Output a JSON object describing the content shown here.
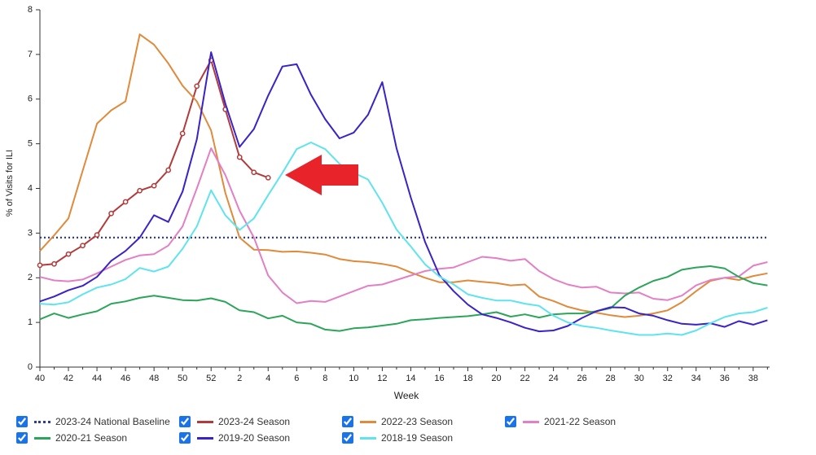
{
  "chart_data": {
    "type": "line",
    "ylabel": "% of Visits for ILI",
    "xlabel": "Week",
    "categories": [
      "40",
      null,
      "42",
      null,
      "44",
      null,
      "46",
      null,
      "48",
      null,
      "50",
      null,
      "52",
      null,
      "2",
      null,
      "4",
      null,
      "6",
      null,
      "8",
      null,
      "10",
      null,
      "12",
      null,
      "14",
      null,
      "16",
      null,
      "18",
      null,
      "20",
      null,
      "22",
      null,
      "24",
      null,
      "26",
      null,
      "28",
      null,
      "30",
      null,
      "32",
      null,
      "34",
      null,
      "36",
      null,
      "38",
      null
    ],
    "ylim": [
      0,
      8
    ],
    "yticks": [
      0,
      1,
      2,
      3,
      4,
      5,
      6,
      7,
      8
    ],
    "series": [
      {
        "name": "2023-24 National Baseline",
        "color": "#2f3f8c",
        "dashed": true,
        "values": [
          2.9,
          2.9,
          2.9,
          2.9,
          2.9,
          2.9,
          2.9,
          2.9,
          2.9,
          2.9,
          2.9,
          2.9,
          2.9,
          2.9,
          2.9,
          2.9,
          2.9,
          2.9,
          2.9,
          2.9,
          2.9,
          2.9,
          2.9,
          2.9,
          2.9,
          2.9,
          2.9,
          2.9,
          2.9,
          2.9,
          2.9,
          2.9,
          2.9,
          2.9,
          2.9,
          2.9,
          2.9,
          2.9,
          2.9,
          2.9,
          2.9,
          2.9,
          2.9,
          2.9,
          2.9,
          2.9,
          2.9,
          2.9,
          2.9,
          2.9,
          2.9,
          2.9
        ]
      },
      {
        "name": "2023-24 Season",
        "color": "#b23a3a",
        "markers": true,
        "values": [
          2.28,
          2.31,
          2.53,
          2.72,
          2.96,
          3.44,
          3.7,
          3.95,
          4.06,
          4.41,
          5.23,
          6.29,
          6.87,
          5.77,
          4.7,
          4.36,
          4.24,
          null,
          null,
          null,
          null,
          null,
          null,
          null,
          null,
          null,
          null,
          null,
          null,
          null,
          null,
          null,
          null,
          null,
          null,
          null,
          null,
          null,
          null,
          null,
          null,
          null,
          null,
          null,
          null,
          null,
          null,
          null,
          null,
          null,
          null,
          null
        ]
      },
      {
        "name": "2022-23 Season",
        "color": "#e08a3c",
        "values": [
          2.6,
          2.95,
          3.33,
          4.4,
          5.45,
          5.75,
          5.95,
          7.45,
          7.22,
          6.8,
          6.3,
          5.95,
          5.3,
          3.9,
          2.9,
          2.63,
          2.62,
          2.58,
          2.59,
          2.56,
          2.52,
          2.42,
          2.37,
          2.35,
          2.31,
          2.25,
          2.12,
          2.0,
          1.9,
          1.9,
          1.94,
          1.91,
          1.88,
          1.83,
          1.85,
          1.58,
          1.48,
          1.35,
          1.27,
          1.22,
          1.16,
          1.12,
          1.15,
          1.2,
          1.27,
          1.45,
          1.7,
          1.93,
          2.0,
          1.95,
          2.04,
          2.1
        ]
      },
      {
        "name": "2021-22 Season",
        "color": "#e37fc4",
        "values": [
          2.02,
          1.94,
          1.92,
          1.96,
          2.1,
          2.25,
          2.4,
          2.5,
          2.53,
          2.72,
          3.15,
          4.0,
          4.9,
          4.3,
          3.5,
          2.9,
          2.05,
          1.67,
          1.43,
          1.48,
          1.46,
          1.58,
          1.7,
          1.82,
          1.85,
          1.95,
          2.05,
          2.15,
          2.2,
          2.23,
          2.35,
          2.47,
          2.44,
          2.38,
          2.42,
          2.15,
          1.97,
          1.85,
          1.78,
          1.8,
          1.67,
          1.65,
          1.67,
          1.53,
          1.5,
          1.6,
          1.83,
          1.95,
          2.0,
          2.03,
          2.27,
          2.35
        ]
      },
      {
        "name": "2020-21 Season",
        "color": "#2ca55a",
        "values": [
          1.07,
          1.2,
          1.1,
          1.18,
          1.25,
          1.42,
          1.47,
          1.55,
          1.6,
          1.55,
          1.5,
          1.49,
          1.54,
          1.46,
          1.27,
          1.23,
          1.09,
          1.15,
          1.0,
          0.97,
          0.84,
          0.81,
          0.87,
          0.89,
          0.93,
          0.97,
          1.05,
          1.07,
          1.1,
          1.12,
          1.14,
          1.18,
          1.23,
          1.13,
          1.18,
          1.11,
          1.18,
          1.2,
          1.2,
          1.25,
          1.32,
          1.6,
          1.78,
          1.93,
          2.02,
          2.18,
          2.23,
          2.26,
          2.21,
          2.02,
          1.88,
          1.83
        ]
      },
      {
        "name": "2019-20 Season",
        "color": "#3a22c9",
        "values": [
          1.47,
          1.58,
          1.72,
          1.82,
          2.02,
          2.38,
          2.6,
          2.9,
          3.4,
          3.25,
          3.93,
          5.1,
          7.05,
          5.9,
          4.93,
          5.33,
          6.08,
          6.73,
          6.78,
          6.1,
          5.55,
          5.12,
          5.25,
          5.65,
          6.38,
          4.9,
          3.8,
          2.8,
          2.06,
          1.7,
          1.4,
          1.18,
          1.1,
          1.0,
          0.88,
          0.8,
          0.82,
          0.92,
          1.1,
          1.25,
          1.34,
          1.33,
          1.2,
          1.15,
          1.05,
          0.97,
          0.95,
          0.98,
          0.9,
          1.03,
          0.95,
          1.05
        ]
      },
      {
        "name": "2018-19 Season",
        "color": "#5fe4ee",
        "values": [
          1.42,
          1.4,
          1.45,
          1.63,
          1.78,
          1.85,
          1.97,
          2.22,
          2.14,
          2.25,
          2.65,
          3.15,
          3.96,
          3.4,
          3.07,
          3.33,
          3.85,
          4.35,
          4.88,
          5.03,
          4.88,
          4.55,
          4.35,
          4.2,
          3.68,
          3.08,
          2.7,
          2.3,
          2.03,
          1.85,
          1.63,
          1.55,
          1.49,
          1.49,
          1.42,
          1.37,
          1.15,
          1.0,
          0.92,
          0.88,
          0.82,
          0.77,
          0.72,
          0.72,
          0.75,
          0.72,
          0.82,
          0.98,
          1.12,
          1.2,
          1.23,
          1.33
        ]
      }
    ]
  }
}
